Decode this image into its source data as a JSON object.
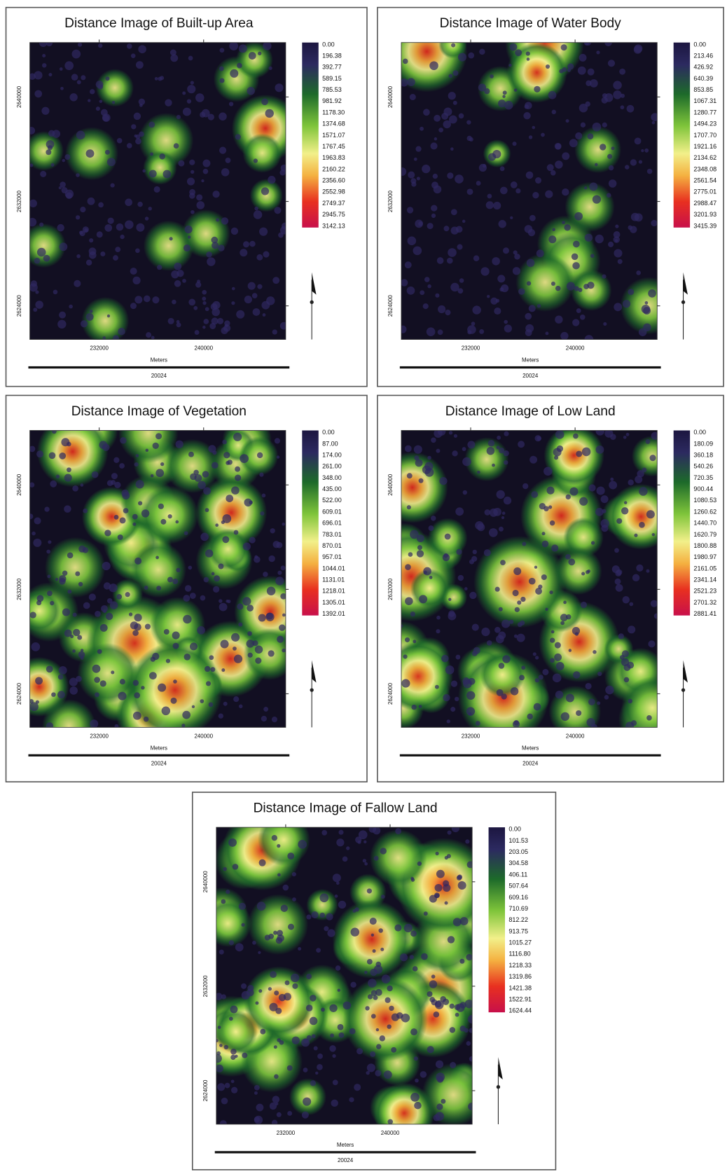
{
  "panels": [
    {
      "title": "Distance Image of Built-up Area",
      "legend": [
        "0.00",
        "196.38",
        "392.77",
        "589.15",
        "785.53",
        "981.92",
        "1178.30",
        "1374.68",
        "1571.07",
        "1767.45",
        "1963.83",
        "2160.22",
        "2356.60",
        "2552.98",
        "2749.37",
        "2945.75",
        "3142.13"
      ],
      "x_labels": [
        "232000",
        "240000"
      ],
      "y_labels": [
        "2640000",
        "2632000",
        "2624000"
      ],
      "scale_unit": "Meters",
      "scale_label": "20024"
    },
    {
      "title": "Distance Image of Water Body",
      "legend": [
        "0.00",
        "213.46",
        "426.92",
        "640.39",
        "853.85",
        "1067.31",
        "1280.77",
        "1494.23",
        "1707.70",
        "1921.16",
        "2134.62",
        "2348.08",
        "2561.54",
        "2775.01",
        "2988.47",
        "3201.93",
        "3415.39"
      ],
      "x_labels": [
        "232000",
        "240000"
      ],
      "y_labels": [
        "2640000",
        "2632000",
        "2624000"
      ],
      "scale_unit": "Meters",
      "scale_label": "20024"
    },
    {
      "title": "Distance Image of Vegetation",
      "legend": [
        "0.00",
        "87.00",
        "174.00",
        "261.00",
        "348.00",
        "435.00",
        "522.00",
        "609.01",
        "696.01",
        "783.01",
        "870.01",
        "957.01",
        "1044.01",
        "1131.01",
        "1218.01",
        "1305.01",
        "1392.01"
      ],
      "x_labels": [
        "232000",
        "240000"
      ],
      "y_labels": [
        "2640000",
        "2632000",
        "2624000"
      ],
      "scale_unit": "Meters",
      "scale_label": "20024"
    },
    {
      "title": "Distance Image of Low Land",
      "legend": [
        "0.00",
        "180.09",
        "360.18",
        "540.26",
        "720.35",
        "900.44",
        "1080.53",
        "1260.62",
        "1440.70",
        "1620.79",
        "1800.88",
        "1980.97",
        "2161.05",
        "2341.14",
        "2521.23",
        "2701.32",
        "2881.41"
      ],
      "x_labels": [
        "232000",
        "240000"
      ],
      "y_labels": [
        "2640000",
        "2632000",
        "2624000"
      ],
      "scale_unit": "Meters",
      "scale_label": "20024"
    },
    {
      "title": "Distance Image of Fallow Land",
      "legend": [
        "0.00",
        "101.53",
        "203.05",
        "304.58",
        "406.11",
        "507.64",
        "609.16",
        "710.69",
        "812.22",
        "913.75",
        "1015.27",
        "1116.80",
        "1218.33",
        "1319.86",
        "1421.38",
        "1522.91",
        "1624.44"
      ],
      "x_labels": [
        "232000",
        "240000"
      ],
      "y_labels": [
        "2640000",
        "2632000",
        "2624000"
      ],
      "scale_unit": "Meters",
      "scale_label": "20024"
    }
  ]
}
